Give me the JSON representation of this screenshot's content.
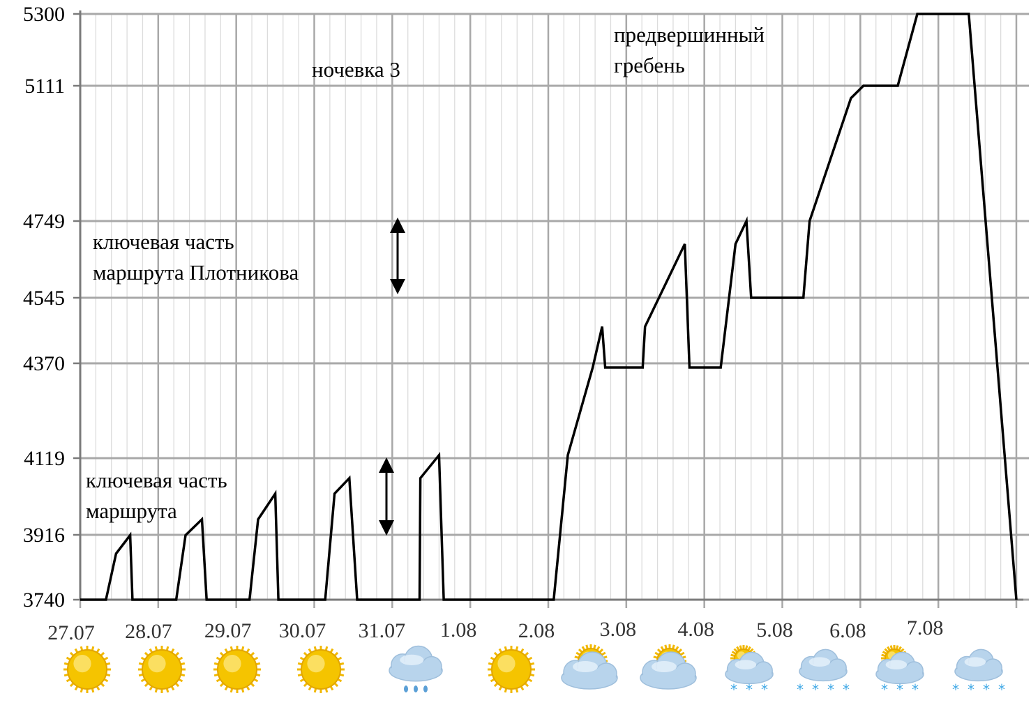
{
  "chart_data": {
    "type": "line",
    "title": "",
    "xlabel": "",
    "ylabel": "",
    "y_ticks": [
      3740,
      3916,
      4119,
      4370,
      4545,
      4749,
      5111,
      5300
    ],
    "ylim": [
      3740,
      5300
    ],
    "x_ticks": [
      "27.07",
      "28.07",
      "29.07",
      "30.07",
      "31.07",
      "1.08",
      "2.08",
      "3.08",
      "4.08",
      "5.08",
      "6.08",
      "7.08"
    ],
    "xlim": [
      0,
      12
    ],
    "grid": true,
    "series": [
      {
        "name": "",
        "color": "#000000",
        "points": [
          [
            0,
            3740
          ],
          [
            0.33,
            3740
          ],
          [
            0.46,
            3865
          ],
          [
            0.64,
            3915
          ],
          [
            0.67,
            3740
          ],
          [
            1.23,
            3740
          ],
          [
            1.35,
            3915
          ],
          [
            1.56,
            3957
          ],
          [
            1.62,
            3740
          ],
          [
            2.17,
            3740
          ],
          [
            2.28,
            3957
          ],
          [
            2.5,
            4025
          ],
          [
            2.54,
            3740
          ],
          [
            3.14,
            3740
          ],
          [
            3.26,
            4025
          ],
          [
            3.45,
            4066
          ],
          [
            3.55,
            3740
          ],
          [
            4.35,
            3740
          ],
          [
            4.36,
            4066
          ],
          [
            4.6,
            4127
          ],
          [
            4.66,
            3740
          ],
          [
            6.07,
            3740
          ],
          [
            6.25,
            4127
          ],
          [
            6.57,
            4359
          ],
          [
            6.69,
            4468
          ],
          [
            6.73,
            4359
          ],
          [
            7.21,
            4359
          ],
          [
            7.24,
            4468
          ],
          [
            7.75,
            4688
          ],
          [
            7.81,
            4359
          ],
          [
            8.21,
            4359
          ],
          [
            8.4,
            4688
          ],
          [
            8.54,
            4749
          ],
          [
            8.6,
            4545
          ],
          [
            9.27,
            4545
          ],
          [
            9.35,
            4749
          ],
          [
            9.88,
            5078
          ],
          [
            10.04,
            5111
          ],
          [
            10.48,
            5111
          ],
          [
            10.73,
            5300
          ],
          [
            11.39,
            5300
          ],
          [
            12.0,
            3740
          ]
        ]
      }
    ],
    "annotations": [
      {
        "lines": [
          "ночевка 3"
        ]
      },
      {
        "lines": [
          "предвершинный",
          "гребень"
        ]
      },
      {
        "lines": [
          "ключевая часть",
          "маршрута Плотникова"
        ]
      },
      {
        "lines": [
          "ключевая часть",
          "маршрута"
        ]
      }
    ],
    "weather": [
      "sun",
      "sun",
      "sun",
      "sun",
      "rain-cloud-icon",
      "sun",
      "partly-cloudy",
      "partly-cloudy",
      "partly-cloudy-snow",
      "cloud-snow",
      "partly-cloudy-snow",
      "cloud-snow"
    ],
    "colors": {
      "line": "#000000",
      "grid": "#a8a8a8",
      "minor_grid": "#dcdcdc",
      "sun": "#f5c400",
      "cloud": "#b8d4ec",
      "snow": "#3fa8e6"
    }
  }
}
